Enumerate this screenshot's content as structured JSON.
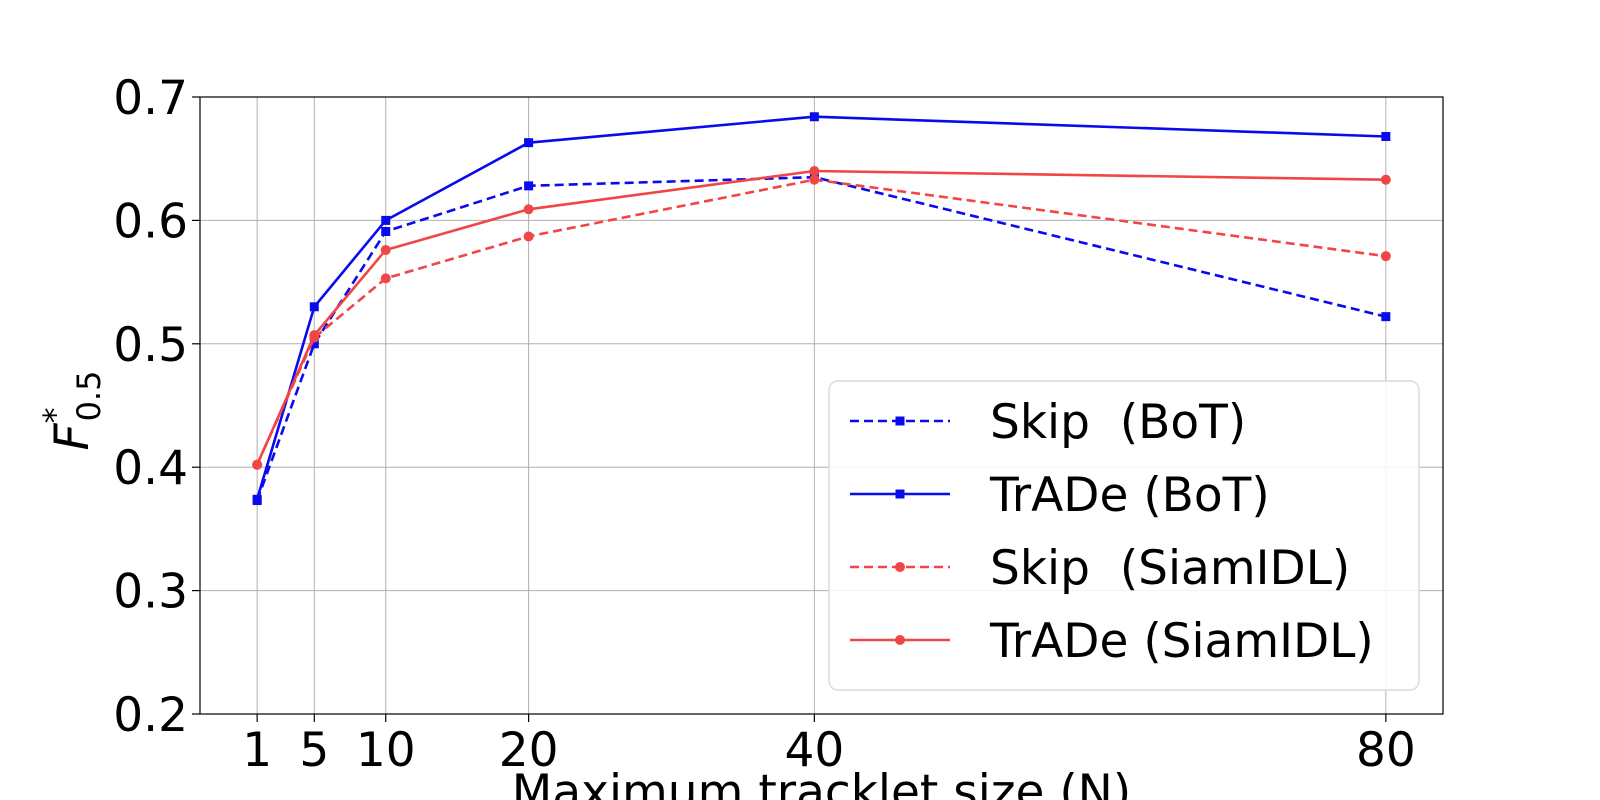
{
  "chart_data": {
    "type": "line",
    "xlabel": "Maximum tracklet size (N)",
    "ylabel": {
      "main": "F",
      "sup": "*",
      "sub": "0.5"
    },
    "x": [
      1,
      5,
      10,
      20,
      40,
      80
    ],
    "x_ticks": [
      "1",
      "5",
      "10",
      "20",
      "40",
      "80"
    ],
    "y_ticks": [
      "0.2",
      "0.3",
      "0.4",
      "0.5",
      "0.6",
      "0.7"
    ],
    "y_tick_values": [
      0.2,
      0.3,
      0.4,
      0.5,
      0.6,
      0.7
    ],
    "ylim": [
      0.2,
      0.7
    ],
    "xlim": [
      -3,
      84
    ],
    "grid": true,
    "legend_position": "lower-right",
    "series": [
      {
        "name": "Skip  (BoT)",
        "color": "#0a0aee",
        "dash": "dashed",
        "marker": "square",
        "values": [
          0.373,
          0.5,
          0.591,
          0.628,
          0.635,
          0.522
        ]
      },
      {
        "name": "TrADe (BoT)",
        "color": "#0a0aee",
        "dash": "solid",
        "marker": "square",
        "values": [
          0.374,
          0.53,
          0.6,
          0.663,
          0.684,
          0.668
        ]
      },
      {
        "name": "Skip  (SiamIDL)",
        "color": "#f04646",
        "dash": "dashed",
        "marker": "circle",
        "values": [
          0.402,
          0.505,
          0.553,
          0.587,
          0.633,
          0.571
        ]
      },
      {
        "name": "TrADe (SiamIDL)",
        "color": "#f04646",
        "dash": "solid",
        "marker": "circle",
        "values": [
          0.402,
          0.507,
          0.576,
          0.609,
          0.64,
          0.633
        ]
      }
    ]
  }
}
